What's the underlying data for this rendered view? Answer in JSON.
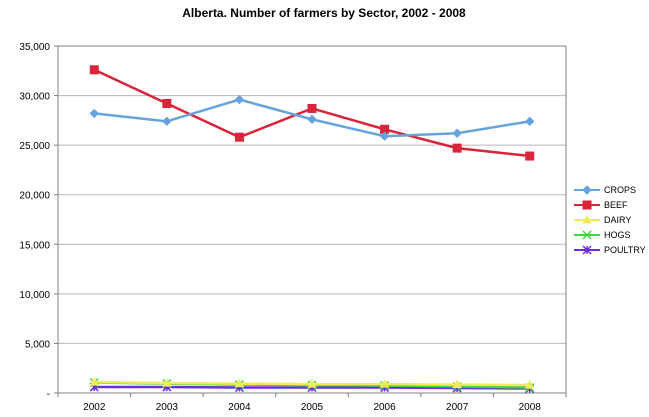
{
  "chart_data": {
    "type": "line",
    "title": "Alberta.  Number of farmers by Sector, 2002 - 2008",
    "xlabel": "",
    "ylabel": "",
    "categories": [
      "2002",
      "2003",
      "2004",
      "2005",
      "2006",
      "2007",
      "2008"
    ],
    "ylim": [
      0,
      35000
    ],
    "yticks": [
      0,
      5000,
      10000,
      15000,
      20000,
      25000,
      30000,
      35000
    ],
    "ytick_labels": [
      "-",
      "5,000",
      "10,000",
      "15,000",
      "20,000",
      "25,000",
      "30,000",
      "35,000"
    ],
    "grid": true,
    "legend_position": "right",
    "series": [
      {
        "name": "CROPS",
        "color": "#66a3dd",
        "marker": "diamond",
        "values": [
          28200,
          27400,
          29600,
          27600,
          25900,
          26200,
          27400
        ]
      },
      {
        "name": "BEEF",
        "color": "#d9243a",
        "marker": "square",
        "values": [
          32600,
          29200,
          25800,
          28700,
          26600,
          24700,
          23900
        ]
      },
      {
        "name": "DAIRY",
        "color": "#f2ea5a",
        "marker": "triangle",
        "values": [
          1100,
          1000,
          950,
          900,
          900,
          850,
          800
        ]
      },
      {
        "name": "HOGS",
        "color": "#3dd63d",
        "marker": "x",
        "values": [
          1050,
          950,
          850,
          800,
          750,
          650,
          550
        ]
      },
      {
        "name": "POULTRY",
        "color": "#6a2de0",
        "marker": "star",
        "values": [
          600,
          600,
          550,
          550,
          550,
          500,
          450
        ]
      }
    ]
  }
}
